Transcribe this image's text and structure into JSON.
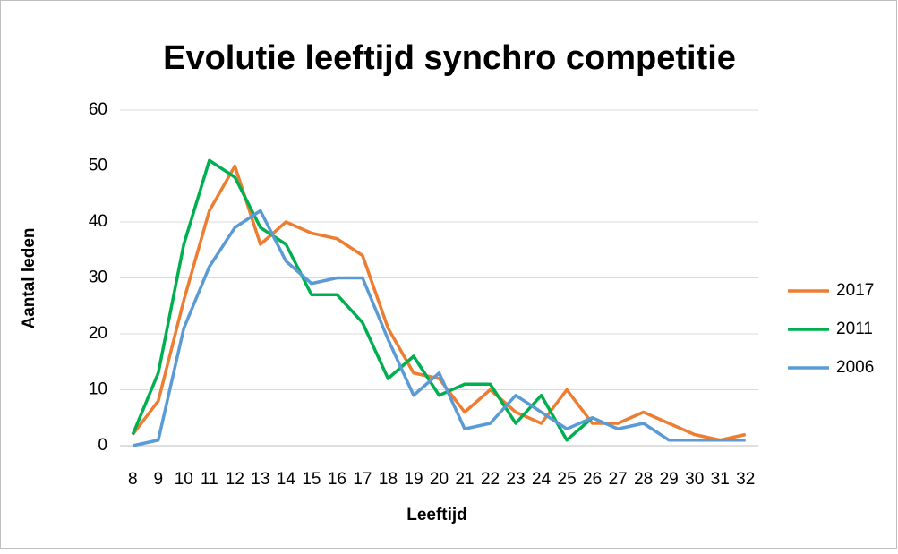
{
  "chart_data": {
    "type": "line",
    "title": "Evolutie leeftijd synchro competitie",
    "x_label": "Leeftijd",
    "y_label": "Aantal leden",
    "categories": [
      "8",
      "9",
      "10",
      "11",
      "12",
      "13",
      "14",
      "15",
      "16",
      "17",
      "18",
      "19",
      "20",
      "21",
      "22",
      "23",
      "24",
      "25",
      "26",
      "27",
      "28",
      "29",
      "30",
      "31",
      "32"
    ],
    "series": [
      {
        "name": "2017",
        "color": "#ed7d31",
        "values": [
          2,
          8,
          26,
          42,
          50,
          36,
          40,
          38,
          37,
          34,
          21,
          13,
          12,
          6,
          10,
          6,
          4,
          10,
          4,
          4,
          6,
          4,
          2,
          1,
          2
        ]
      },
      {
        "name": "2011",
        "color": "#00b050",
        "values": [
          2,
          13,
          36,
          51,
          48,
          39,
          36,
          27,
          27,
          22,
          12,
          16,
          9,
          11,
          11,
          4,
          9,
          1,
          5,
          null,
          null,
          null,
          null,
          null,
          null
        ]
      },
      {
        "name": "2006",
        "color": "#5b9bd5",
        "values": [
          0,
          1,
          21,
          32,
          39,
          42,
          33,
          29,
          30,
          30,
          19,
          9,
          13,
          3,
          4,
          9,
          6,
          3,
          5,
          3,
          4,
          1,
          1,
          1,
          1
        ]
      }
    ],
    "ylim": [
      0,
      60
    ],
    "yticks": [
      0,
      10,
      20,
      30,
      40,
      50,
      60
    ],
    "grid": true,
    "legend": "right"
  }
}
